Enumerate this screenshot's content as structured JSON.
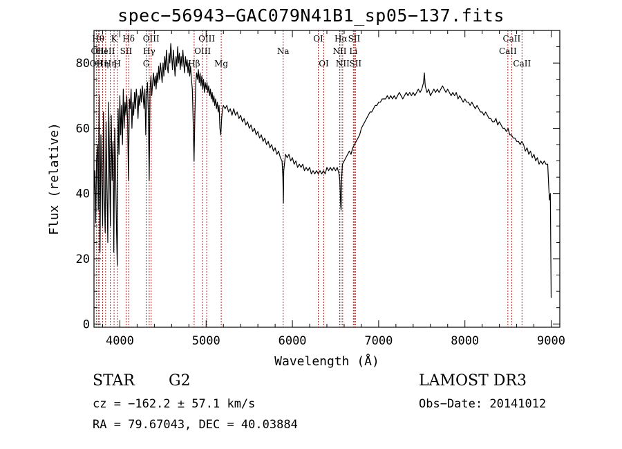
{
  "title": "spec−56943−GAC079N41B1_sp05−137.fits",
  "info": {
    "object_class": "STAR",
    "subclass": "G2",
    "survey": "LAMOST DR3",
    "cz": "cz = −162.2 ± 57.1 km/s",
    "obs_date": "Obs−Date: 20141012",
    "radec": "RA =  79.67043, DEC =  40.03884"
  },
  "chart_data": {
    "type": "line",
    "title": "spec−56943−GAC079N41B1_sp05−137.fits",
    "xlabel": "Wavelength (Å)",
    "ylabel": "Flux (relative)",
    "xlim": [
      3700,
      9100
    ],
    "ylim": [
      -1,
      90
    ],
    "xticks": [
      4000,
      5000,
      6000,
      7000,
      8000,
      9000
    ],
    "yticks": [
      0,
      20,
      40,
      60,
      80
    ],
    "line_color": "#000000",
    "marker_color": "#b22222",
    "spectrum": [
      [
        3700,
        40
      ],
      [
        3710,
        47
      ],
      [
        3720,
        31
      ],
      [
        3730,
        50
      ],
      [
        3740,
        55
      ],
      [
        3750,
        35
      ],
      [
        3760,
        70
      ],
      [
        3770,
        22
      ],
      [
        3780,
        58
      ],
      [
        3790,
        45
      ],
      [
        3800,
        30
      ],
      [
        3810,
        65
      ],
      [
        3820,
        40
      ],
      [
        3830,
        28
      ],
      [
        3840,
        62
      ],
      [
        3850,
        42
      ],
      [
        3860,
        25
      ],
      [
        3870,
        68
      ],
      [
        3880,
        50
      ],
      [
        3890,
        30
      ],
      [
        3900,
        64
      ],
      [
        3910,
        44
      ],
      [
        3920,
        56
      ],
      [
        3930,
        22
      ],
      [
        3940,
        60
      ],
      [
        3950,
        48
      ],
      [
        3960,
        30
      ],
      [
        3970,
        18
      ],
      [
        3980,
        66
      ],
      [
        3990,
        52
      ],
      [
        4000,
        70
      ],
      [
        4010,
        58
      ],
      [
        4020,
        67
      ],
      [
        4030,
        55
      ],
      [
        4040,
        72
      ],
      [
        4050,
        60
      ],
      [
        4060,
        68
      ],
      [
        4070,
        64
      ],
      [
        4080,
        70
      ],
      [
        4090,
        62
      ],
      [
        4100,
        44
      ],
      [
        4110,
        69
      ],
      [
        4120,
        66
      ],
      [
        4130,
        72
      ],
      [
        4140,
        60
      ],
      [
        4150,
        68
      ],
      [
        4160,
        64
      ],
      [
        4170,
        71
      ],
      [
        4180,
        66
      ],
      [
        4190,
        72
      ],
      [
        4200,
        69
      ],
      [
        4210,
        63
      ],
      [
        4220,
        70
      ],
      [
        4230,
        67
      ],
      [
        4240,
        72
      ],
      [
        4250,
        68
      ],
      [
        4260,
        73
      ],
      [
        4270,
        70
      ],
      [
        4280,
        66
      ],
      [
        4290,
        72
      ],
      [
        4300,
        58
      ],
      [
        4310,
        70
      ],
      [
        4320,
        74
      ],
      [
        4330,
        65
      ],
      [
        4340,
        44
      ],
      [
        4350,
        72
      ],
      [
        4360,
        76
      ],
      [
        4370,
        70
      ],
      [
        4380,
        74
      ],
      [
        4390,
        77
      ],
      [
        4400,
        73
      ],
      [
        4410,
        76
      ],
      [
        4420,
        72
      ],
      [
        4430,
        77
      ],
      [
        4440,
        74
      ],
      [
        4450,
        79
      ],
      [
        4460,
        75
      ],
      [
        4470,
        80
      ],
      [
        4480,
        77
      ],
      [
        4490,
        74
      ],
      [
        4500,
        80
      ],
      [
        4510,
        76
      ],
      [
        4520,
        82
      ],
      [
        4530,
        78
      ],
      [
        4540,
        84
      ],
      [
        4550,
        79
      ],
      [
        4560,
        77
      ],
      [
        4570,
        83
      ],
      [
        4580,
        80
      ],
      [
        4590,
        86
      ],
      [
        4600,
        82
      ],
      [
        4610,
        78
      ],
      [
        4620,
        84
      ],
      [
        4630,
        80
      ],
      [
        4640,
        76
      ],
      [
        4650,
        82
      ],
      [
        4660,
        79
      ],
      [
        4670,
        85
      ],
      [
        4680,
        80
      ],
      [
        4690,
        83
      ],
      [
        4700,
        78
      ],
      [
        4710,
        82
      ],
      [
        4720,
        79
      ],
      [
        4730,
        84
      ],
      [
        4740,
        80
      ],
      [
        4750,
        77
      ],
      [
        4760,
        82
      ],
      [
        4770,
        79
      ],
      [
        4780,
        81
      ],
      [
        4790,
        77
      ],
      [
        4800,
        80
      ],
      [
        4810,
        76
      ],
      [
        4820,
        79
      ],
      [
        4830,
        75
      ],
      [
        4840,
        72
      ],
      [
        4850,
        62
      ],
      [
        4860,
        50
      ],
      [
        4870,
        64
      ],
      [
        4880,
        74
      ],
      [
        4890,
        77
      ],
      [
        4900,
        75
      ],
      [
        4910,
        78
      ],
      [
        4920,
        74
      ],
      [
        4930,
        77
      ],
      [
        4940,
        73
      ],
      [
        4950,
        76
      ],
      [
        4960,
        72
      ],
      [
        4970,
        75
      ],
      [
        4980,
        71
      ],
      [
        4990,
        74
      ],
      [
        5000,
        72
      ],
      [
        5010,
        74
      ],
      [
        5020,
        71
      ],
      [
        5030,
        73
      ],
      [
        5040,
        70
      ],
      [
        5050,
        72
      ],
      [
        5060,
        69
      ],
      [
        5070,
        71
      ],
      [
        5080,
        68
      ],
      [
        5090,
        70
      ],
      [
        5100,
        67
      ],
      [
        5110,
        69
      ],
      [
        5120,
        66
      ],
      [
        5130,
        68
      ],
      [
        5140,
        65
      ],
      [
        5150,
        67
      ],
      [
        5160,
        60
      ],
      [
        5170,
        58
      ],
      [
        5180,
        63
      ],
      [
        5190,
        66
      ],
      [
        5200,
        67
      ],
      [
        5220,
        66
      ],
      [
        5240,
        67
      ],
      [
        5260,
        65
      ],
      [
        5280,
        66
      ],
      [
        5300,
        64
      ],
      [
        5320,
        66
      ],
      [
        5340,
        64
      ],
      [
        5360,
        65
      ],
      [
        5380,
        63
      ],
      [
        5400,
        64
      ],
      [
        5420,
        62
      ],
      [
        5440,
        63
      ],
      [
        5460,
        61
      ],
      [
        5480,
        62
      ],
      [
        5500,
        60
      ],
      [
        5520,
        61
      ],
      [
        5540,
        59
      ],
      [
        5560,
        60
      ],
      [
        5580,
        58
      ],
      [
        5600,
        59
      ],
      [
        5620,
        57
      ],
      [
        5640,
        58
      ],
      [
        5660,
        56
      ],
      [
        5680,
        57
      ],
      [
        5700,
        55
      ],
      [
        5720,
        56
      ],
      [
        5740,
        54
      ],
      [
        5760,
        55
      ],
      [
        5780,
        53
      ],
      [
        5800,
        54
      ],
      [
        5820,
        52
      ],
      [
        5840,
        53
      ],
      [
        5860,
        51
      ],
      [
        5880,
        50
      ],
      [
        5890,
        45
      ],
      [
        5895,
        37
      ],
      [
        5900,
        47
      ],
      [
        5920,
        52
      ],
      [
        5940,
        51
      ],
      [
        5960,
        52
      ],
      [
        5980,
        50
      ],
      [
        6000,
        51
      ],
      [
        6020,
        49
      ],
      [
        6040,
        50
      ],
      [
        6060,
        48
      ],
      [
        6080,
        49
      ],
      [
        6100,
        48
      ],
      [
        6120,
        49
      ],
      [
        6140,
        47
      ],
      [
        6160,
        48
      ],
      [
        6180,
        47
      ],
      [
        6200,
        48
      ],
      [
        6220,
        46
      ],
      [
        6240,
        47
      ],
      [
        6260,
        46
      ],
      [
        6280,
        47
      ],
      [
        6300,
        46
      ],
      [
        6320,
        47
      ],
      [
        6340,
        46
      ],
      [
        6360,
        47
      ],
      [
        6380,
        46
      ],
      [
        6400,
        48
      ],
      [
        6420,
        47
      ],
      [
        6440,
        48
      ],
      [
        6460,
        47
      ],
      [
        6480,
        48
      ],
      [
        6500,
        47
      ],
      [
        6520,
        48
      ],
      [
        6540,
        46
      ],
      [
        6550,
        44
      ],
      [
        6560,
        36
      ],
      [
        6565,
        35
      ],
      [
        6570,
        44
      ],
      [
        6580,
        49
      ],
      [
        6600,
        50
      ],
      [
        6620,
        51
      ],
      [
        6640,
        52
      ],
      [
        6660,
        53
      ],
      [
        6680,
        52
      ],
      [
        6700,
        54
      ],
      [
        6720,
        55
      ],
      [
        6740,
        56
      ],
      [
        6760,
        57
      ],
      [
        6780,
        58
      ],
      [
        6800,
        60
      ],
      [
        6820,
        61
      ],
      [
        6840,
        62
      ],
      [
        6860,
        63
      ],
      [
        6880,
        64
      ],
      [
        6900,
        65
      ],
      [
        6920,
        65
      ],
      [
        6940,
        66
      ],
      [
        6960,
        67
      ],
      [
        6980,
        67
      ],
      [
        7000,
        68
      ],
      [
        7020,
        68
      ],
      [
        7040,
        69
      ],
      [
        7060,
        69
      ],
      [
        7080,
        69
      ],
      [
        7100,
        70
      ],
      [
        7120,
        69
      ],
      [
        7140,
        70
      ],
      [
        7160,
        69
      ],
      [
        7180,
        70
      ],
      [
        7200,
        69
      ],
      [
        7220,
        70
      ],
      [
        7240,
        71
      ],
      [
        7260,
        70
      ],
      [
        7280,
        69
      ],
      [
        7300,
        70
      ],
      [
        7320,
        71
      ],
      [
        7340,
        70
      ],
      [
        7360,
        71
      ],
      [
        7380,
        70
      ],
      [
        7400,
        71
      ],
      [
        7420,
        70
      ],
      [
        7440,
        71
      ],
      [
        7460,
        72
      ],
      [
        7480,
        71
      ],
      [
        7500,
        72
      ],
      [
        7520,
        74
      ],
      [
        7530,
        77
      ],
      [
        7540,
        73
      ],
      [
        7560,
        71
      ],
      [
        7580,
        72
      ],
      [
        7600,
        70
      ],
      [
        7620,
        71
      ],
      [
        7640,
        72
      ],
      [
        7660,
        71
      ],
      [
        7680,
        72
      ],
      [
        7700,
        71
      ],
      [
        7720,
        72
      ],
      [
        7740,
        73
      ],
      [
        7760,
        72
      ],
      [
        7780,
        71
      ],
      [
        7800,
        72
      ],
      [
        7820,
        71
      ],
      [
        7840,
        70
      ],
      [
        7860,
        71
      ],
      [
        7880,
        70
      ],
      [
        7900,
        71
      ],
      [
        7920,
        69
      ],
      [
        7940,
        70
      ],
      [
        7960,
        69
      ],
      [
        7980,
        68
      ],
      [
        8000,
        69
      ],
      [
        8020,
        68
      ],
      [
        8040,
        68
      ],
      [
        8060,
        67
      ],
      [
        8080,
        68
      ],
      [
        8100,
        67
      ],
      [
        8120,
        66
      ],
      [
        8140,
        67
      ],
      [
        8160,
        66
      ],
      [
        8180,
        65
      ],
      [
        8200,
        65
      ],
      [
        8220,
        64
      ],
      [
        8240,
        65
      ],
      [
        8260,
        64
      ],
      [
        8280,
        63
      ],
      [
        8300,
        63
      ],
      [
        8320,
        62
      ],
      [
        8340,
        62
      ],
      [
        8360,
        63
      ],
      [
        8380,
        61
      ],
      [
        8400,
        62
      ],
      [
        8420,
        61
      ],
      [
        8440,
        60
      ],
      [
        8460,
        60
      ],
      [
        8480,
        59
      ],
      [
        8500,
        60
      ],
      [
        8520,
        58
      ],
      [
        8540,
        58
      ],
      [
        8560,
        57
      ],
      [
        8580,
        57
      ],
      [
        8600,
        56
      ],
      [
        8620,
        56
      ],
      [
        8640,
        55
      ],
      [
        8660,
        56
      ],
      [
        8680,
        55
      ],
      [
        8700,
        53
      ],
      [
        8720,
        54
      ],
      [
        8740,
        52
      ],
      [
        8760,
        53
      ],
      [
        8780,
        51
      ],
      [
        8800,
        52
      ],
      [
        8820,
        50
      ],
      [
        8840,
        51
      ],
      [
        8860,
        49
      ],
      [
        8880,
        50
      ],
      [
        8900,
        49
      ],
      [
        8920,
        50
      ],
      [
        8940,
        49
      ],
      [
        8960,
        49
      ],
      [
        8970,
        43
      ],
      [
        8980,
        38
      ],
      [
        8990,
        40
      ],
      [
        9000,
        8
      ]
    ],
    "line_markers": [
      {
        "wavelength": 3727,
        "label": "OII",
        "row": 2
      },
      {
        "wavelength": 3750,
        "label": "Hθ",
        "row": 0
      },
      {
        "wavelength": 3760,
        "label": "OIII",
        "row": 1
      },
      {
        "wavelength": 3800,
        "label": "Hη",
        "row": 2
      },
      {
        "wavelength": 3835,
        "label": "HeII",
        "row": 1
      },
      {
        "wavelength": 3889,
        "label": "Hη",
        "row": 2
      },
      {
        "wavelength": 3933,
        "label": "K",
        "row": 0
      },
      {
        "wavelength": 3970,
        "label": "H",
        "row": 2
      },
      {
        "wavelength": 4072,
        "label": "SII",
        "row": 1
      },
      {
        "wavelength": 4102,
        "label": "Hδ",
        "row": 0
      },
      {
        "wavelength": 4305,
        "label": "G",
        "row": 2
      },
      {
        "wavelength": 4340,
        "label": "Hγ",
        "row": 1
      },
      {
        "wavelength": 4363,
        "label": "OIII",
        "row": 0
      },
      {
        "wavelength": 4861,
        "label": "Hβ",
        "row": 2
      },
      {
        "wavelength": 4959,
        "label": "OIII",
        "row": 1
      },
      {
        "wavelength": 5007,
        "label": "OIII",
        "row": 0
      },
      {
        "wavelength": 5175,
        "label": "Mg",
        "row": 2
      },
      {
        "wavelength": 5893,
        "label": "Na",
        "row": 1
      },
      {
        "wavelength": 6300,
        "label": "OI",
        "row": 0
      },
      {
        "wavelength": 6364,
        "label": "OI",
        "row": 2
      },
      {
        "wavelength": 6548,
        "label": "NII",
        "row": 1
      },
      {
        "wavelength": 6563,
        "label": "Hα",
        "row": 0
      },
      {
        "wavelength": 6583,
        "label": "NII",
        "row": 2
      },
      {
        "wavelength": 6707,
        "label": "Li",
        "row": 1
      },
      {
        "wavelength": 6716,
        "label": "SII",
        "row": 0
      },
      {
        "wavelength": 6731,
        "label": "SII",
        "row": 2
      },
      {
        "wavelength": 8498,
        "label": "CaII",
        "row": 1
      },
      {
        "wavelength": 8542,
        "label": "CaII",
        "row": 0
      },
      {
        "wavelength": 8662,
        "label": "CaII",
        "row": 2
      }
    ]
  }
}
